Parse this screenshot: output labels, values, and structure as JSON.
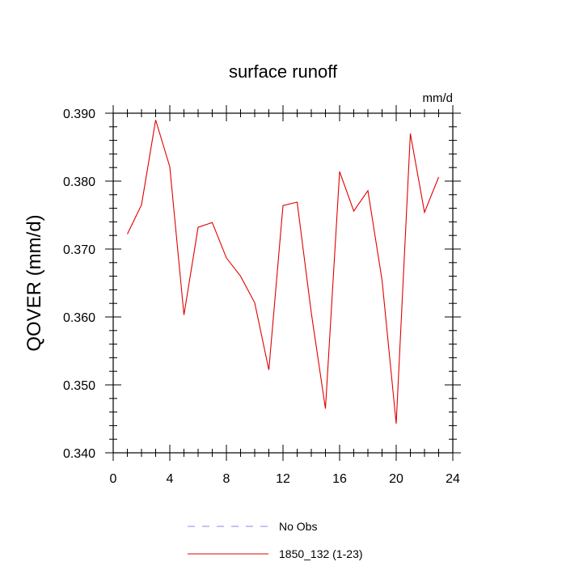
{
  "chart_data": {
    "type": "line",
    "title": "surface runoff",
    "units": "mm/d",
    "xlabel": "",
    "ylabel": "QOVER  (mm/d)",
    "xlim": [
      0,
      24
    ],
    "ylim": [
      0.34,
      0.39
    ],
    "x_ticks": [
      0,
      4,
      8,
      12,
      16,
      20,
      24
    ],
    "y_ticks": [
      "0.340",
      "0.350",
      "0.360",
      "0.370",
      "0.380",
      "0.390"
    ],
    "grid": false,
    "legend": {
      "placement": "bottom",
      "entries": [
        {
          "label": "No Obs",
          "color": "#8a8ae8",
          "style": "dashed"
        },
        {
          "label": "1850_132 (1-23)",
          "color": "#e00000",
          "style": "solid"
        }
      ]
    },
    "series": [
      {
        "name": "1850_132 (1-23)",
        "color": "#e00000",
        "x": [
          1,
          2,
          3,
          4,
          5,
          6,
          7,
          8,
          9,
          10,
          11,
          12,
          13,
          14,
          15,
          16,
          17,
          18,
          19,
          20,
          21,
          22,
          23
        ],
        "y": [
          0.3722,
          0.3765,
          0.389,
          0.3821,
          0.3603,
          0.3732,
          0.3739,
          0.3687,
          0.366,
          0.3621,
          0.3522,
          0.3764,
          0.3769,
          0.3606,
          0.3465,
          0.3814,
          0.3756,
          0.3786,
          0.3654,
          0.3443,
          0.387,
          0.3754,
          0.3806
        ]
      }
    ]
  }
}
